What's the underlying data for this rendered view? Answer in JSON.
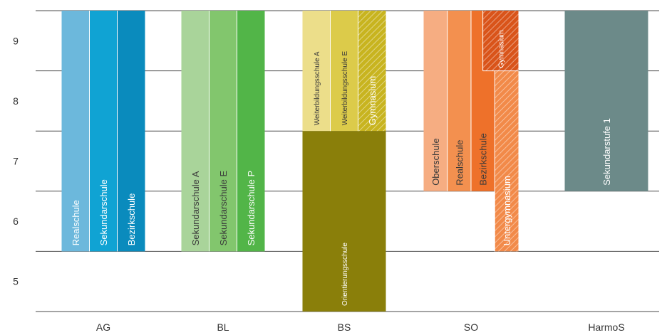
{
  "chart_data": {
    "type": "bar",
    "title": "",
    "xlabel": "",
    "ylabel": "",
    "ylim": [
      4.5,
      9.5
    ],
    "y_ticks": [
      "5",
      "6",
      "7",
      "8",
      "9"
    ],
    "categories": [
      "AG",
      "BL",
      "BS",
      "SO",
      "HarmoS"
    ],
    "grid": "horizontal",
    "segments": [
      {
        "category": "AG",
        "column": 0,
        "columns": 3,
        "label": "Realschule",
        "from": 5.5,
        "to": 9.5,
        "color": "#6cb8dc",
        "pattern": false
      },
      {
        "category": "AG",
        "column": 1,
        "columns": 3,
        "label": "Sekundarschule",
        "from": 5.5,
        "to": 9.5,
        "color": "#10a3d3",
        "pattern": false
      },
      {
        "category": "AG",
        "column": 2,
        "columns": 3,
        "label": "Bezirkschule",
        "from": 5.5,
        "to": 9.5,
        "color": "#0a8bbd",
        "pattern": false
      },
      {
        "category": "BL",
        "column": 0,
        "columns": 3,
        "label": "Sekundarschule A",
        "from": 5.5,
        "to": 9.5,
        "color": "#a9d49a",
        "pattern": false
      },
      {
        "category": "BL",
        "column": 1,
        "columns": 3,
        "label": "Sekundarschule E",
        "from": 5.5,
        "to": 9.5,
        "color": "#82c66d",
        "pattern": false
      },
      {
        "category": "BL",
        "column": 2,
        "columns": 3,
        "label": "Sekundarschule P",
        "from": 5.5,
        "to": 9.5,
        "color": "#52b548",
        "pattern": false
      },
      {
        "category": "BS",
        "column": 0,
        "columns": 1,
        "label": "Orientierungsschule",
        "from": 4.5,
        "to": 7.5,
        "color": "#8a7f0a",
        "pattern": false
      },
      {
        "category": "BS",
        "column": 0,
        "columns": 3,
        "label": "Weiterbildungsschule A",
        "from": 7.5,
        "to": 9.5,
        "color": "#ecde8a",
        "pattern": false
      },
      {
        "category": "BS",
        "column": 1,
        "columns": 3,
        "label": "Weiterbildungsschule E",
        "from": 7.5,
        "to": 9.5,
        "color": "#dccb4a",
        "pattern": false
      },
      {
        "category": "BS",
        "column": 2,
        "columns": 3,
        "label": "Gymnasium",
        "from": 7.5,
        "to": 9.5,
        "color": "#c8b41f",
        "pattern": true
      },
      {
        "category": "SO",
        "column": 0,
        "columns": 4,
        "label": "Oberschule",
        "from": 6.5,
        "to": 9.5,
        "color": "#f6ad82",
        "pattern": false
      },
      {
        "category": "SO",
        "column": 1,
        "columns": 4,
        "label": "Realschule",
        "from": 6.5,
        "to": 9.5,
        "color": "#f3904f",
        "pattern": false
      },
      {
        "category": "SO",
        "column": 2,
        "columns": 4,
        "label": "Bezirkschule",
        "from": 6.5,
        "to": 9.5,
        "color": "#ee712a",
        "pattern": false
      },
      {
        "category": "SO",
        "column": 3,
        "columns": 4,
        "label": "Untergymnasium",
        "from": 5.5,
        "to": 8.5,
        "color": "#f28a49",
        "pattern": true
      },
      {
        "category": "SO",
        "column": 3,
        "columns": 4,
        "label": "Gymnasium",
        "from": 8.5,
        "to": 9.5,
        "color": "#d9541a",
        "pattern": true,
        "wide": true
      },
      {
        "category": "HarmoS",
        "column": 0,
        "columns": 1,
        "label": "Sekundarstufe 1",
        "from": 6.5,
        "to": 9.5,
        "color": "#6c8a89",
        "pattern": false
      }
    ]
  }
}
